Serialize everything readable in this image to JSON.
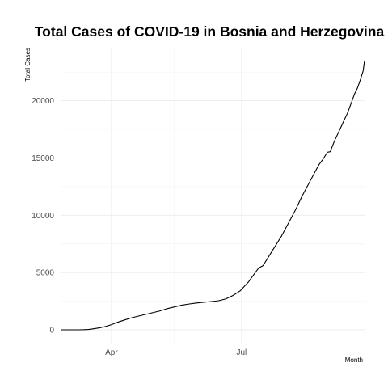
{
  "chart_data": {
    "type": "line",
    "title": "Total Cases of COVID-19 in Bosnia and Herzegovina",
    "xlabel": "Month",
    "ylabel": "Total Cases",
    "x_axis": {
      "type": "date",
      "range": [
        "2020-02-26",
        "2020-09-25"
      ],
      "ticks": [
        {
          "date": "2020-04-01",
          "label": "Apr"
        },
        {
          "date": "2020-07-01",
          "label": "Jul"
        }
      ],
      "minor_gridlines": [
        "2020-02-15",
        "2020-05-15",
        "2020-08-15"
      ]
    },
    "y_axis": {
      "range": [
        -1200,
        24700
      ],
      "ticks": [
        0,
        5000,
        10000,
        15000,
        20000
      ]
    },
    "grid": true,
    "legend": "none",
    "series": [
      {
        "color": "#000000",
        "points": [
          [
            "2020-02-26",
            0
          ],
          [
            "2020-03-04",
            0
          ],
          [
            "2020-03-09",
            0
          ],
          [
            "2020-03-13",
            10
          ],
          [
            "2020-03-16",
            30
          ],
          [
            "2020-03-20",
            100
          ],
          [
            "2020-03-24",
            180
          ],
          [
            "2020-03-28",
            300
          ],
          [
            "2020-04-01",
            450
          ],
          [
            "2020-04-05",
            650
          ],
          [
            "2020-04-10",
            850
          ],
          [
            "2020-04-15",
            1050
          ],
          [
            "2020-04-20",
            1200
          ],
          [
            "2020-04-25",
            1350
          ],
          [
            "2020-04-30",
            1500
          ],
          [
            "2020-05-05",
            1650
          ],
          [
            "2020-05-10",
            1850
          ],
          [
            "2020-05-15",
            2000
          ],
          [
            "2020-05-20",
            2150
          ],
          [
            "2020-05-25",
            2250
          ],
          [
            "2020-05-30",
            2330
          ],
          [
            "2020-06-05",
            2410
          ],
          [
            "2020-06-10",
            2470
          ],
          [
            "2020-06-15",
            2540
          ],
          [
            "2020-06-20",
            2700
          ],
          [
            "2020-06-25",
            3000
          ],
          [
            "2020-06-30",
            3400
          ],
          [
            "2020-07-03",
            3800
          ],
          [
            "2020-07-06",
            4200
          ],
          [
            "2020-07-10",
            4900
          ],
          [
            "2020-07-13",
            5400
          ],
          [
            "2020-07-16",
            5600
          ],
          [
            "2020-07-20",
            6400
          ],
          [
            "2020-07-23",
            7000
          ],
          [
            "2020-07-26",
            7600
          ],
          [
            "2020-07-29",
            8200
          ],
          [
            "2020-08-01",
            8900
          ],
          [
            "2020-08-04",
            9600
          ],
          [
            "2020-08-07",
            10300
          ],
          [
            "2020-08-09",
            10800
          ],
          [
            "2020-08-12",
            11600
          ],
          [
            "2020-08-15",
            12300
          ],
          [
            "2020-08-18",
            13000
          ],
          [
            "2020-08-21",
            13700
          ],
          [
            "2020-08-24",
            14400
          ],
          [
            "2020-08-27",
            14900
          ],
          [
            "2020-08-30",
            15500
          ],
          [
            "2020-09-01",
            15550
          ],
          [
            "2020-09-04",
            16500
          ],
          [
            "2020-09-07",
            17300
          ],
          [
            "2020-09-10",
            18100
          ],
          [
            "2020-09-13",
            18900
          ],
          [
            "2020-09-16",
            19900
          ],
          [
            "2020-09-18",
            20600
          ],
          [
            "2020-09-20",
            21100
          ],
          [
            "2020-09-22",
            21800
          ],
          [
            "2020-09-24",
            22600
          ],
          [
            "2020-09-25",
            23500
          ]
        ]
      }
    ]
  }
}
